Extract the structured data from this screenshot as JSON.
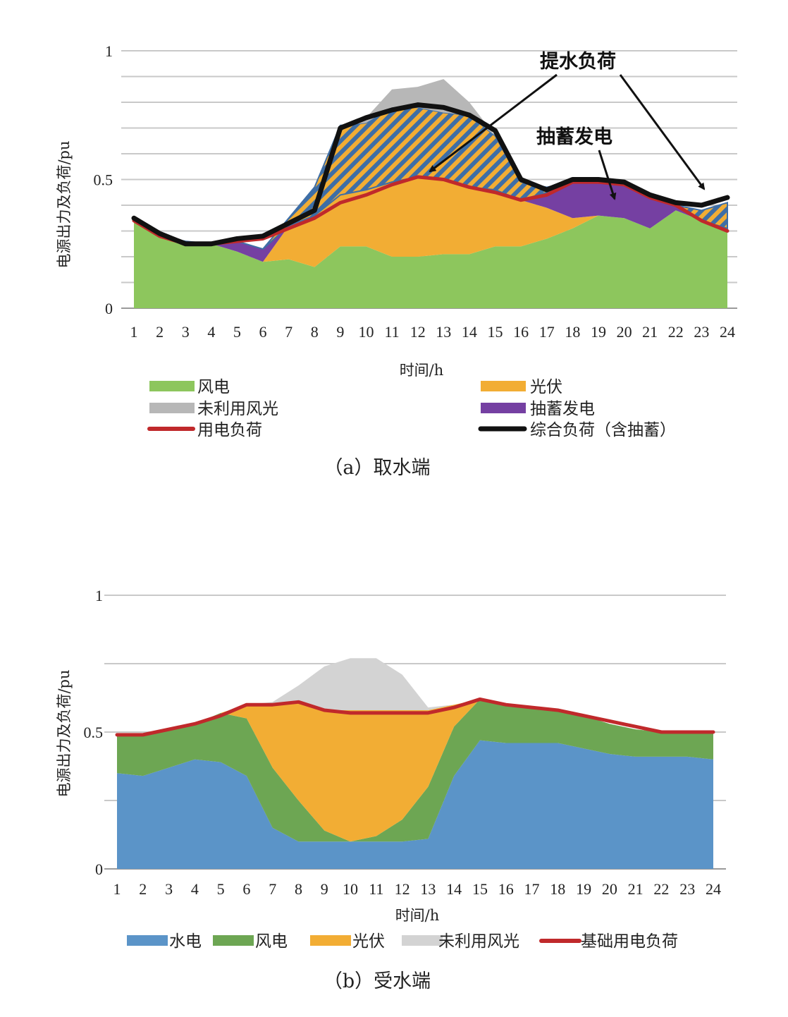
{
  "chart_data": [
    {
      "id": "a",
      "type": "area",
      "caption": "（a）取水端",
      "xlabel": "时间/h",
      "ylabel": "电源出力及负荷/pu",
      "ylim": [
        0,
        1
      ],
      "yticks": [
        "0",
        "0.5",
        "1"
      ],
      "x": [
        1,
        2,
        3,
        4,
        5,
        6,
        7,
        8,
        9,
        10,
        11,
        12,
        13,
        14,
        15,
        16,
        17,
        18,
        19,
        20,
        21,
        22,
        23,
        24
      ],
      "series": [
        {
          "name": "风电",
          "kind": "area",
          "color": "#8dc65d",
          "values": [
            0.34,
            0.28,
            0.26,
            0.25,
            0.22,
            0.18,
            0.19,
            0.16,
            0.24,
            0.24,
            0.2,
            0.2,
            0.21,
            0.21,
            0.24,
            0.24,
            0.27,
            0.31,
            0.36,
            0.35,
            0.31,
            0.38,
            0.34,
            0.31
          ]
        },
        {
          "name": "光伏",
          "kind": "area",
          "color": "#f2ad34",
          "values": [
            0,
            0,
            0,
            0,
            0,
            0,
            0.13,
            0.2,
            0.2,
            0.22,
            0.29,
            0.31,
            0.29,
            0.26,
            0.22,
            0.18,
            0.12,
            0.04,
            0,
            0,
            0,
            0,
            0,
            0
          ]
        },
        {
          "name": "抽蓄发电",
          "kind": "area",
          "color": "#7540a2",
          "values": [
            0,
            0,
            0,
            0,
            0.04,
            0.05,
            0,
            0,
            0,
            0,
            0,
            0,
            0,
            0,
            0,
            0,
            0.06,
            0.14,
            0.13,
            0.14,
            0.12,
            0.02,
            0,
            0
          ]
        },
        {
          "name": "提水负荷",
          "kind": "hatched-area",
          "values": [
            0,
            0,
            0,
            0,
            0,
            0,
            0.03,
            0.11,
            0.27,
            0.26,
            0.29,
            0.27,
            0.26,
            0.28,
            0.21,
            0.07,
            0.02,
            0,
            0,
            0,
            0,
            0,
            0.04,
            0.1
          ]
        },
        {
          "name": "未利用风光",
          "kind": "area",
          "color": "#b7b7b7",
          "values": [
            0,
            0,
            0,
            0,
            0,
            0,
            0,
            0,
            0,
            0.02,
            0.07,
            0.08,
            0.13,
            0.05,
            0,
            0,
            0,
            0,
            0,
            0,
            0,
            0,
            0,
            0
          ]
        },
        {
          "name": "用电负荷",
          "kind": "line",
          "color": "#c0292b",
          "values": [
            0.34,
            0.28,
            0.25,
            0.25,
            0.26,
            0.27,
            0.31,
            0.35,
            0.41,
            0.44,
            0.48,
            0.51,
            0.5,
            0.47,
            0.45,
            0.42,
            0.44,
            0.49,
            0.49,
            0.48,
            0.43,
            0.4,
            0.34,
            0.3
          ]
        },
        {
          "name": "综合负荷（含抽蓄）",
          "kind": "line",
          "color": "#111111",
          "values": [
            0.35,
            0.29,
            0.25,
            0.25,
            0.27,
            0.28,
            0.33,
            0.38,
            0.7,
            0.74,
            0.77,
            0.79,
            0.78,
            0.75,
            0.69,
            0.5,
            0.46,
            0.5,
            0.5,
            0.49,
            0.44,
            0.41,
            0.4,
            0.43
          ]
        }
      ],
      "legend": {
        "items": [
          {
            "name": "风电",
            "color": "#8dc65d",
            "kind": "area"
          },
          {
            "name": "光伏",
            "color": "#f2ad34",
            "kind": "area"
          },
          {
            "name": "未利用风光",
            "color": "#b7b7b7",
            "kind": "area"
          },
          {
            "name": "抽蓄发电",
            "color": "#7540a2",
            "kind": "area"
          },
          {
            "name": "用电负荷",
            "color": "#c0292b",
            "kind": "line"
          },
          {
            "name": "综合负荷（含抽蓄）",
            "color": "#111111",
            "kind": "line"
          }
        ]
      },
      "annotations": [
        "提水负荷",
        "抽蓄发电"
      ],
      "grid": true
    },
    {
      "id": "b",
      "type": "area",
      "caption": "（b）受水端",
      "xlabel": "时间/h",
      "ylabel": "电源出力及负荷/pu",
      "ylim": [
        0,
        1
      ],
      "yticks": [
        "0",
        "0.5",
        "1"
      ],
      "x": [
        1,
        2,
        3,
        4,
        5,
        6,
        7,
        8,
        9,
        10,
        11,
        12,
        13,
        14,
        15,
        16,
        17,
        18,
        19,
        20,
        21,
        22,
        23,
        24
      ],
      "series": [
        {
          "name": "水电",
          "kind": "area",
          "color": "#5b94c8",
          "values": [
            0.35,
            0.34,
            0.37,
            0.4,
            0.39,
            0.34,
            0.15,
            0.1,
            0.1,
            0.1,
            0.1,
            0.1,
            0.11,
            0.34,
            0.47,
            0.46,
            0.46,
            0.46,
            0.44,
            0.42,
            0.41,
            0.41,
            0.41,
            0.4
          ]
        },
        {
          "name": "风电",
          "kind": "area",
          "color": "#6da653",
          "values": [
            0.14,
            0.15,
            0.14,
            0.13,
            0.18,
            0.21,
            0.22,
            0.15,
            0.04,
            0,
            0.02,
            0.08,
            0.19,
            0.18,
            0.15,
            0.14,
            0.13,
            0.12,
            0.12,
            0.11,
            0.1,
            0.09,
            0.09,
            0.1
          ]
        },
        {
          "name": "光伏",
          "kind": "area",
          "color": "#f2ad34",
          "values": [
            0,
            0,
            0,
            0,
            0,
            0.05,
            0.23,
            0.36,
            0.44,
            0.48,
            0.46,
            0.4,
            0.28,
            0.08,
            0,
            0,
            0,
            0,
            0,
            0,
            0,
            0,
            0,
            0
          ]
        },
        {
          "name": "未利用风光",
          "kind": "area",
          "color": "#d3d3d3",
          "values": [
            0,
            0,
            0,
            0,
            0,
            0,
            0.01,
            0.06,
            0.16,
            0.19,
            0.19,
            0.13,
            0.01,
            0,
            0,
            0,
            0,
            0,
            0,
            0,
            0,
            0,
            0,
            0
          ]
        },
        {
          "name": "基础用电负荷",
          "kind": "line",
          "color": "#c0292b",
          "values": [
            0.49,
            0.49,
            0.51,
            0.53,
            0.56,
            0.6,
            0.6,
            0.61,
            0.58,
            0.57,
            0.57,
            0.57,
            0.57,
            0.59,
            0.62,
            0.6,
            0.59,
            0.58,
            0.56,
            0.54,
            0.52,
            0.5,
            0.5,
            0.5
          ]
        }
      ],
      "legend": {
        "items": [
          {
            "name": "水电",
            "color": "#5b94c8",
            "kind": "area"
          },
          {
            "name": "风电",
            "color": "#6da653",
            "kind": "area"
          },
          {
            "name": "光伏",
            "color": "#f2ad34",
            "kind": "area"
          },
          {
            "name": "未利用风光",
            "color": "#d3d3d3",
            "kind": "area"
          },
          {
            "name": "基础用电负荷",
            "color": "#c0292b",
            "kind": "line"
          }
        ]
      },
      "grid": true
    }
  ]
}
